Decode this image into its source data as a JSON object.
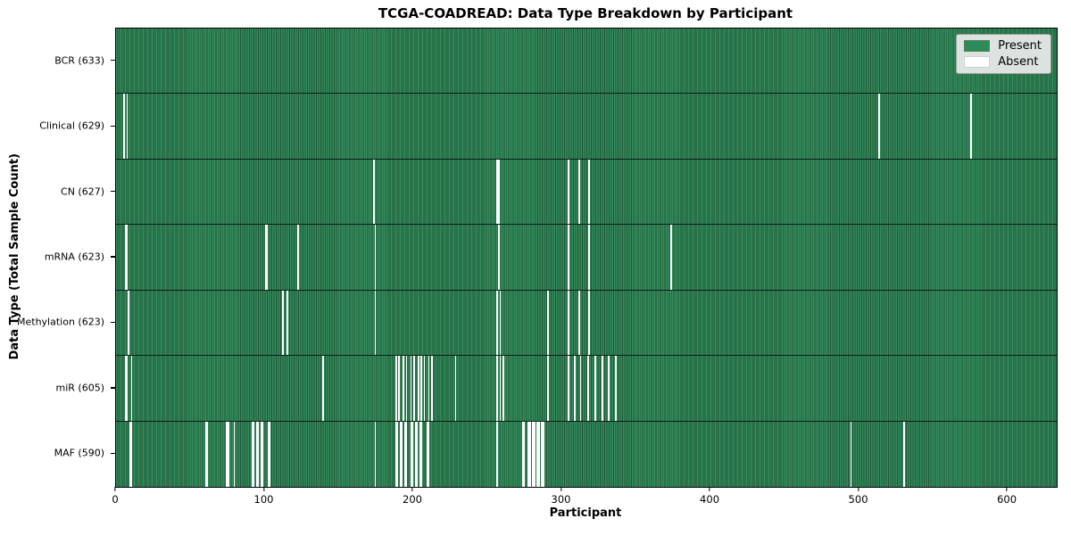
{
  "title": "TCGA-COADREAD: Data Type Breakdown by Participant",
  "axes": {
    "x_label": "Participant",
    "y_label": "Data Type (Total Sample Count)",
    "x_ticks": [
      0,
      100,
      200,
      300,
      400,
      500,
      600
    ]
  },
  "legend": {
    "entries": [
      {
        "label": "Present",
        "color": "#2e8b57"
      },
      {
        "label": "Absent",
        "color": "#ffffff"
      }
    ]
  },
  "colors": {
    "present_green": "#2e8b57",
    "cell_edge_dark_green": "#1d5737",
    "absent_white": "#ffffff",
    "row_separator": "#0b1f14",
    "legend_background": "#ebebeb",
    "spine": "#000000"
  },
  "chart_data": {
    "type": "heatmap",
    "title": "TCGA-COADREAD: Data Type Breakdown by Participant",
    "xlabel": "Participant",
    "ylabel": "Data Type (Total Sample Count)",
    "xlim": [
      0,
      633
    ],
    "n_participants": 633,
    "grid": false,
    "legend_position": "upper right",
    "value_encoding": {
      "present": "seagreen #2e8b57",
      "absent": "white"
    },
    "rows": [
      {
        "label": "BCR (633)",
        "data_type": "BCR",
        "present_count": 633,
        "absent_count": 0,
        "absent_participants": []
      },
      {
        "label": "Clinical (629)",
        "data_type": "Clinical",
        "present_count": 629,
        "absent_count": 4,
        "absent_participants": [
          5,
          7,
          513,
          575
        ]
      },
      {
        "label": "CN (627)",
        "data_type": "CN",
        "present_count": 627,
        "absent_count": 6,
        "absent_participants": [
          173,
          256,
          257,
          304,
          311,
          318
        ]
      },
      {
        "label": "mRNA (623)",
        "data_type": "mRNA",
        "present_count": 623,
        "absent_count": 10,
        "absent_participants": [
          6,
          7,
          100,
          101,
          122,
          174,
          257,
          304,
          318,
          373
        ]
      },
      {
        "label": "Methylation (623)",
        "data_type": "Methylation",
        "present_count": 623,
        "absent_count": 10,
        "absent_participants": [
          8,
          112,
          115,
          174,
          256,
          258,
          290,
          304,
          311,
          318
        ]
      },
      {
        "label": "miR (605)",
        "data_type": "miR",
        "present_count": 605,
        "absent_count": 28,
        "absent_participants": [
          6,
          7,
          10,
          139,
          188,
          190,
          193,
          195,
          198,
          200,
          203,
          205,
          207,
          210,
          212,
          228,
          256,
          258,
          260,
          290,
          304,
          308,
          312,
          317,
          322,
          327,
          331,
          336
        ]
      },
      {
        "label": "MAF (590)",
        "data_type": "MAF",
        "present_count": 590,
        "absent_count": 43,
        "absent_participants": [
          9,
          10,
          60,
          61,
          74,
          75,
          79,
          91,
          92,
          94,
          95,
          97,
          98,
          102,
          103,
          174,
          188,
          189,
          191,
          192,
          194,
          195,
          198,
          199,
          201,
          202,
          204,
          205,
          209,
          210,
          256,
          273,
          274,
          277,
          278,
          280,
          281,
          283,
          284,
          286,
          287,
          494,
          530
        ]
      }
    ]
  }
}
